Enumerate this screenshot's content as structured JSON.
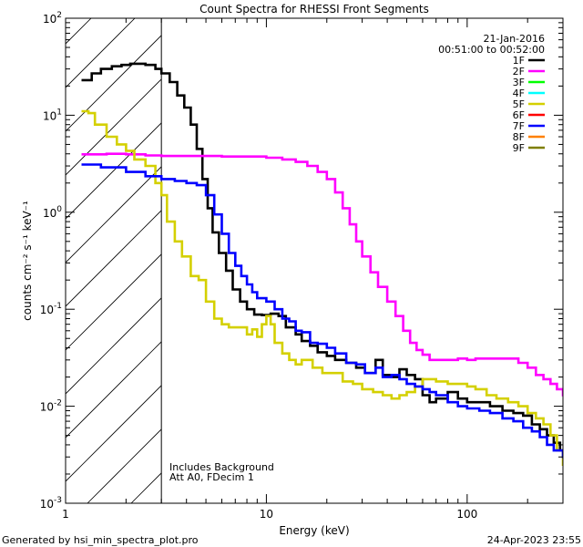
{
  "chart_data": {
    "type": "line",
    "title": "Count Spectra for RHESSI Front Segments",
    "xlabel": "Energy (keV)",
    "ylabel": "counts cm⁻² s⁻¹ keV⁻¹",
    "xscale": "log",
    "yscale": "log",
    "xlim": [
      1,
      300
    ],
    "ylim": [
      0.001,
      100
    ],
    "x_tick_labels": [
      {
        "value": 1,
        "label": "1"
      },
      {
        "value": 10,
        "label": "10"
      },
      {
        "value": 100,
        "label": "100"
      }
    ],
    "y_tick_labels": [
      {
        "value": 100,
        "base": "10",
        "exp": "2"
      },
      {
        "value": 10,
        "base": "10",
        "exp": "1"
      },
      {
        "value": 1,
        "base": "10",
        "exp": "0"
      },
      {
        "value": 0.1,
        "base": "10",
        "exp": "-1"
      },
      {
        "value": 0.01,
        "base": "10",
        "exp": "-2"
      },
      {
        "value": 0.001,
        "base": "10",
        "exp": "-3"
      }
    ],
    "date_label": "21-Jan-2016",
    "time_range_label": "00:51:00 to 00:52:00",
    "hatched_region_max_keV": 3,
    "annotations": [
      "Includes Background",
      "Att A0, FDecim 1"
    ],
    "legend": [
      {
        "name": "1F",
        "color": "#000000"
      },
      {
        "name": "2F",
        "color": "#ff00ff"
      },
      {
        "name": "3F",
        "color": "#00ff00"
      },
      {
        "name": "4F",
        "color": "#00ffff"
      },
      {
        "name": "5F",
        "color": "#d4d000"
      },
      {
        "name": "6F",
        "color": "#ff0000"
      },
      {
        "name": "7F",
        "color": "#0000ff"
      },
      {
        "name": "8F",
        "color": "#ff8000"
      },
      {
        "name": "9F",
        "color": "#7f7f00"
      }
    ],
    "series": [
      {
        "name": "1F",
        "color": "#000000",
        "points": [
          [
            1.2,
            23
          ],
          [
            1.35,
            27
          ],
          [
            1.5,
            30
          ],
          [
            1.7,
            32
          ],
          [
            1.9,
            33
          ],
          [
            2.1,
            34
          ],
          [
            2.3,
            34
          ],
          [
            2.5,
            33
          ],
          [
            2.8,
            30
          ],
          [
            3.0,
            27
          ],
          [
            3.3,
            22
          ],
          [
            3.6,
            16
          ],
          [
            3.9,
            12
          ],
          [
            4.2,
            8
          ],
          [
            4.5,
            4.5
          ],
          [
            4.8,
            2.2
          ],
          [
            5.1,
            1.1
          ],
          [
            5.4,
            0.62
          ],
          [
            5.8,
            0.38
          ],
          [
            6.3,
            0.25
          ],
          [
            6.8,
            0.16
          ],
          [
            7.4,
            0.12
          ],
          [
            8,
            0.1
          ],
          [
            8.7,
            0.088
          ],
          [
            9.5,
            0.087
          ],
          [
            10.5,
            0.09
          ],
          [
            11.5,
            0.085
          ],
          [
            12.5,
            0.065
          ],
          [
            14,
            0.055
          ],
          [
            15,
            0.047
          ],
          [
            16.5,
            0.042
          ],
          [
            18,
            0.036
          ],
          [
            20,
            0.033
          ],
          [
            22,
            0.03
          ],
          [
            25,
            0.028
          ],
          [
            28,
            0.025
          ],
          [
            31,
            0.022
          ],
          [
            35,
            0.03
          ],
          [
            38,
            0.021
          ],
          [
            42,
            0.02
          ],
          [
            46,
            0.024
          ],
          [
            50,
            0.021
          ],
          [
            55,
            0.019
          ],
          [
            60,
            0.013
          ],
          [
            65,
            0.011
          ],
          [
            70,
            0.012
          ],
          [
            80,
            0.014
          ],
          [
            90,
            0.012
          ],
          [
            100,
            0.011
          ],
          [
            115,
            0.011
          ],
          [
            130,
            0.01
          ],
          [
            150,
            0.009
          ],
          [
            170,
            0.0085
          ],
          [
            190,
            0.008
          ],
          [
            210,
            0.0065
          ],
          [
            230,
            0.0058
          ],
          [
            250,
            0.005
          ],
          [
            270,
            0.0042
          ],
          [
            290,
            0.0035
          ]
        ]
      },
      {
        "name": "2F",
        "color": "#ff00ff",
        "points": [
          [
            1.2,
            3.95
          ],
          [
            1.6,
            4
          ],
          [
            2,
            3.95
          ],
          [
            2.5,
            3.85
          ],
          [
            3,
            3.8
          ],
          [
            4,
            3.8
          ],
          [
            5,
            3.8
          ],
          [
            6,
            3.75
          ],
          [
            7,
            3.75
          ],
          [
            8,
            3.75
          ],
          [
            10,
            3.65
          ],
          [
            12,
            3.5
          ],
          [
            14,
            3.3
          ],
          [
            16,
            3
          ],
          [
            18,
            2.6
          ],
          [
            20,
            2.2
          ],
          [
            22,
            1.6
          ],
          [
            24,
            1.1
          ],
          [
            26,
            0.75
          ],
          [
            28,
            0.5
          ],
          [
            30,
            0.35
          ],
          [
            33,
            0.24
          ],
          [
            36,
            0.17
          ],
          [
            40,
            0.12
          ],
          [
            44,
            0.085
          ],
          [
            48,
            0.06
          ],
          [
            52,
            0.045
          ],
          [
            56,
            0.038
          ],
          [
            60,
            0.034
          ],
          [
            65,
            0.03
          ],
          [
            70,
            0.03
          ],
          [
            80,
            0.03
          ],
          [
            90,
            0.031
          ],
          [
            100,
            0.03
          ],
          [
            110,
            0.031
          ],
          [
            120,
            0.031
          ],
          [
            140,
            0.031
          ],
          [
            160,
            0.031
          ],
          [
            180,
            0.028
          ],
          [
            200,
            0.025
          ],
          [
            220,
            0.021
          ],
          [
            240,
            0.019
          ],
          [
            260,
            0.017
          ],
          [
            280,
            0.015
          ],
          [
            300,
            0.013
          ]
        ]
      },
      {
        "name": "5F",
        "color": "#d4d000",
        "points": [
          [
            1.2,
            11
          ],
          [
            1.3,
            10.5
          ],
          [
            1.4,
            8
          ],
          [
            1.6,
            6
          ],
          [
            1.8,
            5
          ],
          [
            2.0,
            4.3
          ],
          [
            2.2,
            3.5
          ],
          [
            2.5,
            3
          ],
          [
            2.8,
            2
          ],
          [
            3.0,
            1.5
          ],
          [
            3.2,
            0.8
          ],
          [
            3.5,
            0.5
          ],
          [
            3.8,
            0.35
          ],
          [
            4.2,
            0.22
          ],
          [
            4.6,
            0.2
          ],
          [
            5.0,
            0.12
          ],
          [
            5.5,
            0.08
          ],
          [
            6.0,
            0.07
          ],
          [
            6.5,
            0.065
          ],
          [
            7,
            0.065
          ],
          [
            7.5,
            0.065
          ],
          [
            8,
            0.055
          ],
          [
            8.5,
            0.062
          ],
          [
            9,
            0.052
          ],
          [
            9.5,
            0.07
          ],
          [
            10,
            0.085
          ],
          [
            10.5,
            0.07
          ],
          [
            11,
            0.045
          ],
          [
            12,
            0.035
          ],
          [
            13,
            0.03
          ],
          [
            14,
            0.027
          ],
          [
            15,
            0.03
          ],
          [
            17,
            0.025
          ],
          [
            19,
            0.022
          ],
          [
            21,
            0.022
          ],
          [
            24,
            0.018
          ],
          [
            27,
            0.017
          ],
          [
            30,
            0.015
          ],
          [
            34,
            0.014
          ],
          [
            38,
            0.013
          ],
          [
            42,
            0.012
          ],
          [
            46,
            0.013
          ],
          [
            50,
            0.014
          ],
          [
            55,
            0.016
          ],
          [
            60,
            0.019
          ],
          [
            70,
            0.018
          ],
          [
            80,
            0.017
          ],
          [
            90,
            0.017
          ],
          [
            100,
            0.016
          ],
          [
            110,
            0.015
          ],
          [
            125,
            0.013
          ],
          [
            140,
            0.012
          ],
          [
            160,
            0.011
          ],
          [
            180,
            0.01
          ],
          [
            200,
            0.0085
          ],
          [
            220,
            0.0075
          ],
          [
            240,
            0.0065
          ],
          [
            260,
            0.005
          ],
          [
            280,
            0.0035
          ],
          [
            300,
            0.0025
          ]
        ]
      },
      {
        "name": "7F",
        "color": "#0000ff",
        "points": [
          [
            1.2,
            3.1
          ],
          [
            1.5,
            2.9
          ],
          [
            2,
            2.6
          ],
          [
            2.5,
            2.35
          ],
          [
            3,
            2.2
          ],
          [
            3.5,
            2.1
          ],
          [
            4,
            2.0
          ],
          [
            4.5,
            1.9
          ],
          [
            5,
            1.5
          ],
          [
            5.5,
            0.95
          ],
          [
            6,
            0.6
          ],
          [
            6.5,
            0.38
          ],
          [
            7,
            0.28
          ],
          [
            7.5,
            0.22
          ],
          [
            8,
            0.18
          ],
          [
            8.5,
            0.15
          ],
          [
            9,
            0.13
          ],
          [
            10,
            0.12
          ],
          [
            11,
            0.1
          ],
          [
            12,
            0.08
          ],
          [
            13,
            0.075
          ],
          [
            14,
            0.06
          ],
          [
            15,
            0.058
          ],
          [
            16.5,
            0.045
          ],
          [
            18,
            0.044
          ],
          [
            20,
            0.04
          ],
          [
            22,
            0.035
          ],
          [
            25,
            0.028
          ],
          [
            28,
            0.027
          ],
          [
            31,
            0.022
          ],
          [
            35,
            0.025
          ],
          [
            38,
            0.02
          ],
          [
            42,
            0.021
          ],
          [
            46,
            0.019
          ],
          [
            50,
            0.017
          ],
          [
            55,
            0.016
          ],
          [
            60,
            0.015
          ],
          [
            65,
            0.014
          ],
          [
            70,
            0.013
          ],
          [
            80,
            0.011
          ],
          [
            90,
            0.01
          ],
          [
            100,
            0.0095
          ],
          [
            115,
            0.009
          ],
          [
            130,
            0.0085
          ],
          [
            150,
            0.0075
          ],
          [
            170,
            0.007
          ],
          [
            190,
            0.006
          ],
          [
            210,
            0.0055
          ],
          [
            230,
            0.0048
          ],
          [
            250,
            0.004
          ],
          [
            270,
            0.0035
          ],
          [
            300,
            0.003
          ]
        ]
      }
    ]
  },
  "footer": {
    "generated_by": "Generated by hsi_min_spectra_plot.pro",
    "timestamp": "24-Apr-2023 23:55"
  }
}
